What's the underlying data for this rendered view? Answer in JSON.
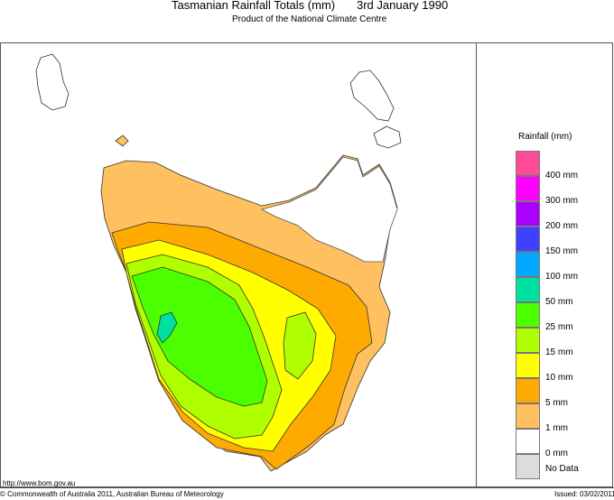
{
  "header": {
    "title": "Tasmanian Rainfall Totals (mm)",
    "date": "3rd January 1990",
    "subtitle": "Product of the National Climate Centre"
  },
  "legend": {
    "title": "Rainfall (mm)",
    "colors": [
      "#ff4c9a",
      "#ff00ff",
      "#aa00ff",
      "#3f3fff",
      "#00a8ff",
      "#00e0a0",
      "#4cff00",
      "#b0ff00",
      "#ffff00",
      "#ffaa00",
      "#ffc060",
      "#ffffff",
      "#d8d8d8"
    ],
    "labels": [
      "400 mm",
      "300 mm",
      "200 mm",
      "150 mm",
      "100 mm",
      "50 mm",
      "25 mm",
      "15 mm",
      "10 mm",
      "5 mm",
      "1 mm",
      "0 mm",
      "No Data"
    ]
  },
  "footer": {
    "url": "http://www.bom.gov.au",
    "copyright": "© Commonwealth of Australia 2011, Australian Bureau of Meteorology",
    "issued": "Issued: 03/02/2011"
  }
}
